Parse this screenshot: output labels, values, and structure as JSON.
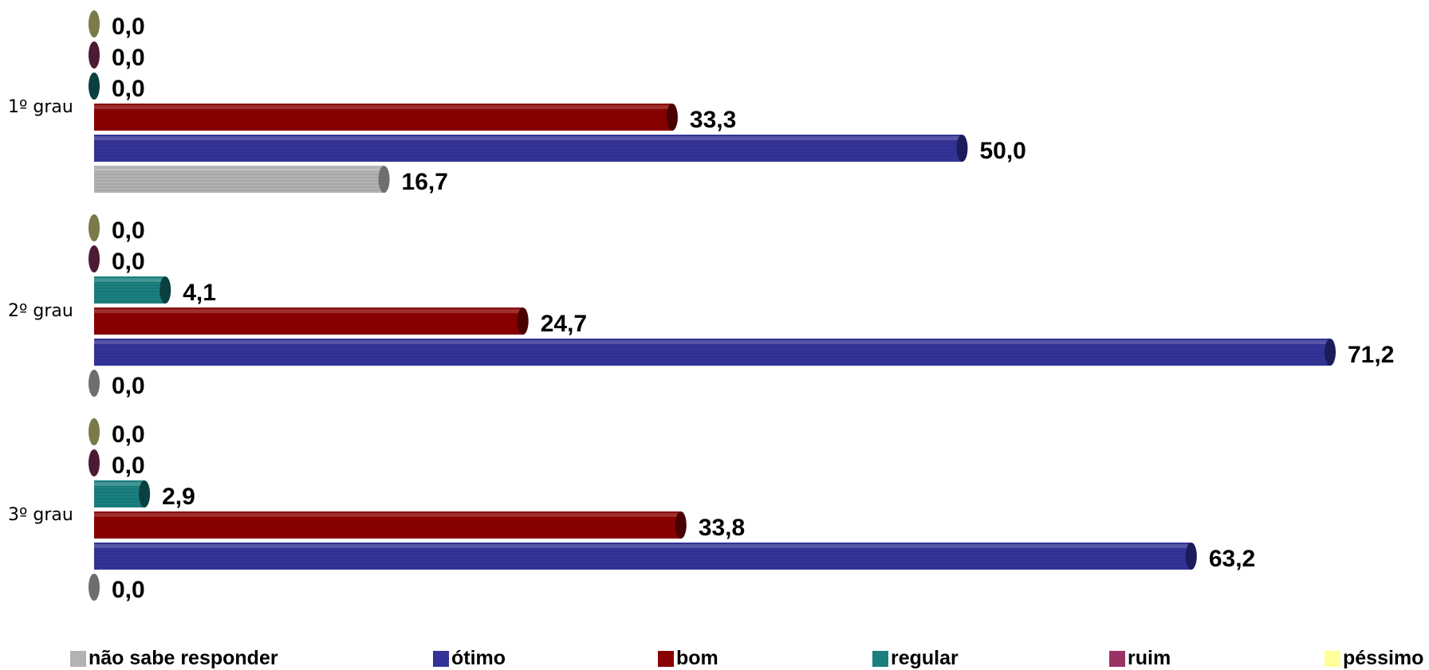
{
  "chart_data": {
    "type": "bar",
    "orientation": "horizontal",
    "categories": [
      "1º grau",
      "2º grau",
      "3º grau"
    ],
    "series": [
      {
        "name": "não sabe responder",
        "color": "#b3b3b3",
        "side_color": "#6e6e6e",
        "values": [
          16.7,
          0.0,
          0.0
        ],
        "labels": [
          "16,7",
          "0,0",
          "0,0"
        ]
      },
      {
        "name": "ótimo",
        "color": "#333399",
        "side_color": "#1c1c5c",
        "values": [
          50.0,
          71.2,
          63.2
        ],
        "labels": [
          "50,0",
          "71,2",
          "63,2"
        ]
      },
      {
        "name": "bom",
        "color": "#8b0000",
        "side_color": "#4a0000",
        "values": [
          33.3,
          24.7,
          33.8
        ],
        "labels": [
          "33,3",
          "24,7",
          "33,8"
        ]
      },
      {
        "name": "regular",
        "color": "#1a8080",
        "side_color": "#0a4040",
        "values": [
          0.0,
          4.1,
          2.9
        ],
        "labels": [
          "0,0",
          "4,1",
          "2,9"
        ]
      },
      {
        "name": "ruim",
        "color": "#993366",
        "side_color": "#4d1a33",
        "values": [
          0.0,
          0.0,
          0.0
        ],
        "labels": [
          "0,0",
          "0,0",
          "0,0"
        ]
      },
      {
        "name": "péssimo",
        "color": "#ffff99",
        "side_color": "#7a7a4a",
        "values": [
          0.0,
          0.0,
          0.0
        ],
        "labels": [
          "0,0",
          "0,0",
          "0,0"
        ]
      }
    ],
    "xlim": [
      0,
      71.2
    ],
    "grid": false,
    "legend_position": "bottom"
  }
}
